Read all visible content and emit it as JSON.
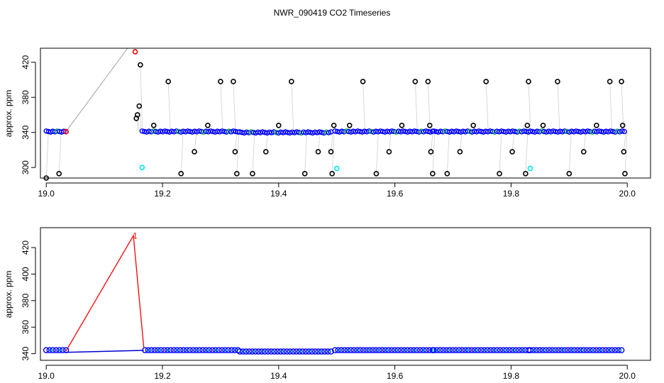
{
  "chart_data": [
    {
      "type": "scatter",
      "title": "NWR_090419  CO2 Timeseries",
      "xlabel": "",
      "ylabel": "approx. ppm",
      "xlim": [
        18.99,
        20.04
      ],
      "ylim": [
        288,
        436
      ],
      "xticks": [
        19.0,
        19.2,
        19.4,
        19.6,
        19.8,
        20.0
      ],
      "xtick_labels": [
        "19.0",
        "19.2",
        "19.4",
        "19.6",
        "19.8",
        "20.0"
      ],
      "yticks": [
        300,
        340,
        380,
        420
      ],
      "ytick_labels": [
        "300",
        "340",
        "380",
        "420"
      ],
      "colors": {
        "main": "#0000ff",
        "flag": "#ff0000",
        "highlight": "#00e5ee",
        "spike": "#000000",
        "line": "#a0a0a0"
      },
      "segments": [
        {
          "x0": 19.0,
          "x1": 19.034,
          "y": 341
        },
        {
          "x0": 19.165,
          "x1": 19.33,
          "y": 341
        },
        {
          "x0": 19.333,
          "x1": 19.49,
          "y": 340
        },
        {
          "x0": 19.497,
          "x1": 19.665,
          "y": 341
        },
        {
          "x0": 19.667,
          "x1": 19.83,
          "y": 341
        },
        {
          "x0": 19.833,
          "x1": 19.995,
          "y": 341
        }
      ],
      "black_points": [
        {
          "x": 19.0,
          "y": 288
        },
        {
          "x": 19.022,
          "y": 293
        },
        {
          "x": 19.155,
          "y": 356
        },
        {
          "x": 19.157,
          "y": 360
        },
        {
          "x": 19.16,
          "y": 370
        },
        {
          "x": 19.162,
          "y": 417
        },
        {
          "x": 19.185,
          "y": 348
        },
        {
          "x": 19.21,
          "y": 398
        },
        {
          "x": 19.232,
          "y": 293
        },
        {
          "x": 19.255,
          "y": 318
        },
        {
          "x": 19.278,
          "y": 348
        },
        {
          "x": 19.3,
          "y": 398
        },
        {
          "x": 19.322,
          "y": 398
        },
        {
          "x": 19.325,
          "y": 318
        },
        {
          "x": 19.328,
          "y": 293
        },
        {
          "x": 19.355,
          "y": 293
        },
        {
          "x": 19.378,
          "y": 318
        },
        {
          "x": 19.4,
          "y": 348
        },
        {
          "x": 19.422,
          "y": 398
        },
        {
          "x": 19.445,
          "y": 293
        },
        {
          "x": 19.468,
          "y": 318
        },
        {
          "x": 19.49,
          "y": 318
        },
        {
          "x": 19.492,
          "y": 293
        },
        {
          "x": 19.495,
          "y": 348
        },
        {
          "x": 19.522,
          "y": 348
        },
        {
          "x": 19.545,
          "y": 398
        },
        {
          "x": 19.568,
          "y": 293
        },
        {
          "x": 19.59,
          "y": 318
        },
        {
          "x": 19.612,
          "y": 348
        },
        {
          "x": 19.635,
          "y": 398
        },
        {
          "x": 19.657,
          "y": 398
        },
        {
          "x": 19.66,
          "y": 348
        },
        {
          "x": 19.662,
          "y": 318
        },
        {
          "x": 19.665,
          "y": 293
        },
        {
          "x": 19.69,
          "y": 293
        },
        {
          "x": 19.712,
          "y": 318
        },
        {
          "x": 19.735,
          "y": 348
        },
        {
          "x": 19.757,
          "y": 398
        },
        {
          "x": 19.78,
          "y": 293
        },
        {
          "x": 19.802,
          "y": 318
        },
        {
          "x": 19.825,
          "y": 293
        },
        {
          "x": 19.828,
          "y": 348
        },
        {
          "x": 19.83,
          "y": 398
        },
        {
          "x": 19.855,
          "y": 348
        },
        {
          "x": 19.88,
          "y": 398
        },
        {
          "x": 19.9,
          "y": 293
        },
        {
          "x": 19.925,
          "y": 318
        },
        {
          "x": 19.947,
          "y": 348
        },
        {
          "x": 19.97,
          "y": 398
        },
        {
          "x": 19.99,
          "y": 398
        },
        {
          "x": 19.992,
          "y": 348
        },
        {
          "x": 19.994,
          "y": 318
        },
        {
          "x": 19.996,
          "y": 293
        }
      ],
      "red_points": [
        {
          "x": 19.153,
          "y": 432
        },
        {
          "x": 19.034,
          "y": 341
        }
      ],
      "cyan_points": [
        {
          "x": 19.165,
          "y": 300
        },
        {
          "x": 19.5,
          "y": 299
        },
        {
          "x": 19.833,
          "y": 299
        }
      ],
      "gray_line": [
        {
          "x": 19.034,
          "y": 341
        },
        {
          "x": 19.14,
          "y": 436
        }
      ]
    },
    {
      "type": "scatter",
      "title": "",
      "xlabel": "",
      "ylabel": "approx. ppm",
      "xlim": [
        18.99,
        20.04
      ],
      "ylim": [
        335,
        435
      ],
      "xticks": [
        19.0,
        19.2,
        19.4,
        19.6,
        19.8,
        20.0
      ],
      "xtick_labels": [
        "19.0",
        "19.2",
        "19.4",
        "19.6",
        "19.8",
        "20.0"
      ],
      "yticks": [
        340,
        360,
        380,
        400,
        420
      ],
      "ytick_labels": [
        "340",
        "360",
        "380",
        "400",
        "420"
      ],
      "colors": {
        "main": "#0000ff",
        "flag": "#ff0000",
        "highlight": "#00e5ee",
        "line": "#0000cc"
      },
      "segments": [
        {
          "x0": 19.0,
          "x1": 19.034,
          "y": 342
        },
        {
          "x0": 19.17,
          "x1": 19.33,
          "y": 342
        },
        {
          "x0": 19.333,
          "x1": 19.49,
          "y": 341
        },
        {
          "x0": 19.497,
          "x1": 19.665,
          "y": 342
        },
        {
          "x0": 19.667,
          "x1": 19.83,
          "y": 342
        },
        {
          "x0": 19.833,
          "x1": 19.99,
          "y": 342
        }
      ],
      "red_line": [
        {
          "x": 19.034,
          "y": 342
        },
        {
          "x": 19.15,
          "y": 429
        },
        {
          "x": 19.168,
          "y": 344
        }
      ],
      "blue_line": [
        {
          "x": 19.034,
          "y": 341
        },
        {
          "x": 19.168,
          "y": 342.5
        }
      ],
      "annotation": {
        "x": 19.153,
        "y": 431,
        "text": "1"
      }
    }
  ]
}
